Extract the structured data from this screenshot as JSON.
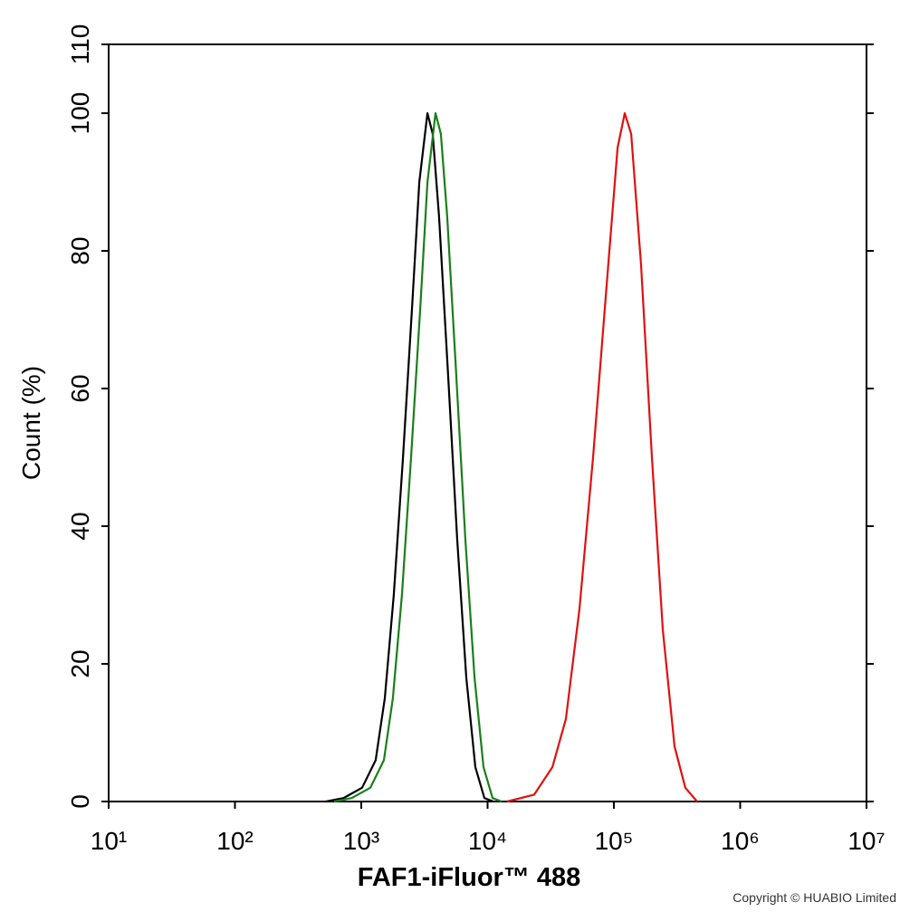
{
  "chart_data": {
    "type": "line",
    "xlabel": "FAF1-iFluor™ 488",
    "ylabel": "Count  (%)",
    "copyright": "Copyright © HUABIO Limited",
    "xscale": "log",
    "xlim": [
      10,
      10000000
    ],
    "ylim": [
      0,
      110
    ],
    "xticks": [
      {
        "value": 10,
        "label": "10¹"
      },
      {
        "value": 100,
        "label": "10²"
      },
      {
        "value": 1000,
        "label": "10³"
      },
      {
        "value": 10000,
        "label": "10⁴"
      },
      {
        "value": 100000,
        "label": "10⁵"
      },
      {
        "value": 1000000,
        "label": "10⁶"
      },
      {
        "value": 10000000,
        "label": "10⁷"
      }
    ],
    "yticks": [
      0,
      20,
      40,
      60,
      80,
      100,
      110
    ],
    "series": [
      {
        "color": "#000000",
        "x": [
          525,
          724,
          1015,
          1300,
          1535,
          1810,
          2140,
          2530,
          2880,
          3340,
          3680,
          4130,
          4870,
          5750,
          6790,
          8000,
          9440,
          11100
        ],
        "values": [
          0,
          0.5,
          2,
          6,
          15,
          30,
          50,
          72,
          90,
          100,
          97,
          85,
          62,
          38,
          18,
          5,
          0.5,
          0
        ]
      },
      {
        "color": "#1a7f1a",
        "x": [
          609,
          840,
          1180,
          1510,
          1780,
          2100,
          2480,
          2940,
          3340,
          3870,
          4270,
          4790,
          5650,
          6670,
          7880,
          9280,
          10950,
          12900
        ],
        "values": [
          0,
          0.5,
          2,
          6,
          15,
          30,
          50,
          72,
          90,
          100,
          97,
          85,
          62,
          38,
          18,
          5,
          0.5,
          0
        ]
      },
      {
        "color": "#e01010",
        "x": [
          14250,
          23400,
          32600,
          41700,
          53400,
          68400,
          87700,
          107000,
          122000,
          137000,
          164000,
          200000,
          244000,
          302000,
          368000,
          456000
        ],
        "values": [
          0,
          1,
          5,
          12,
          28,
          50,
          75,
          95,
          100,
          97,
          78,
          50,
          25,
          8,
          2,
          0
        ]
      }
    ]
  }
}
